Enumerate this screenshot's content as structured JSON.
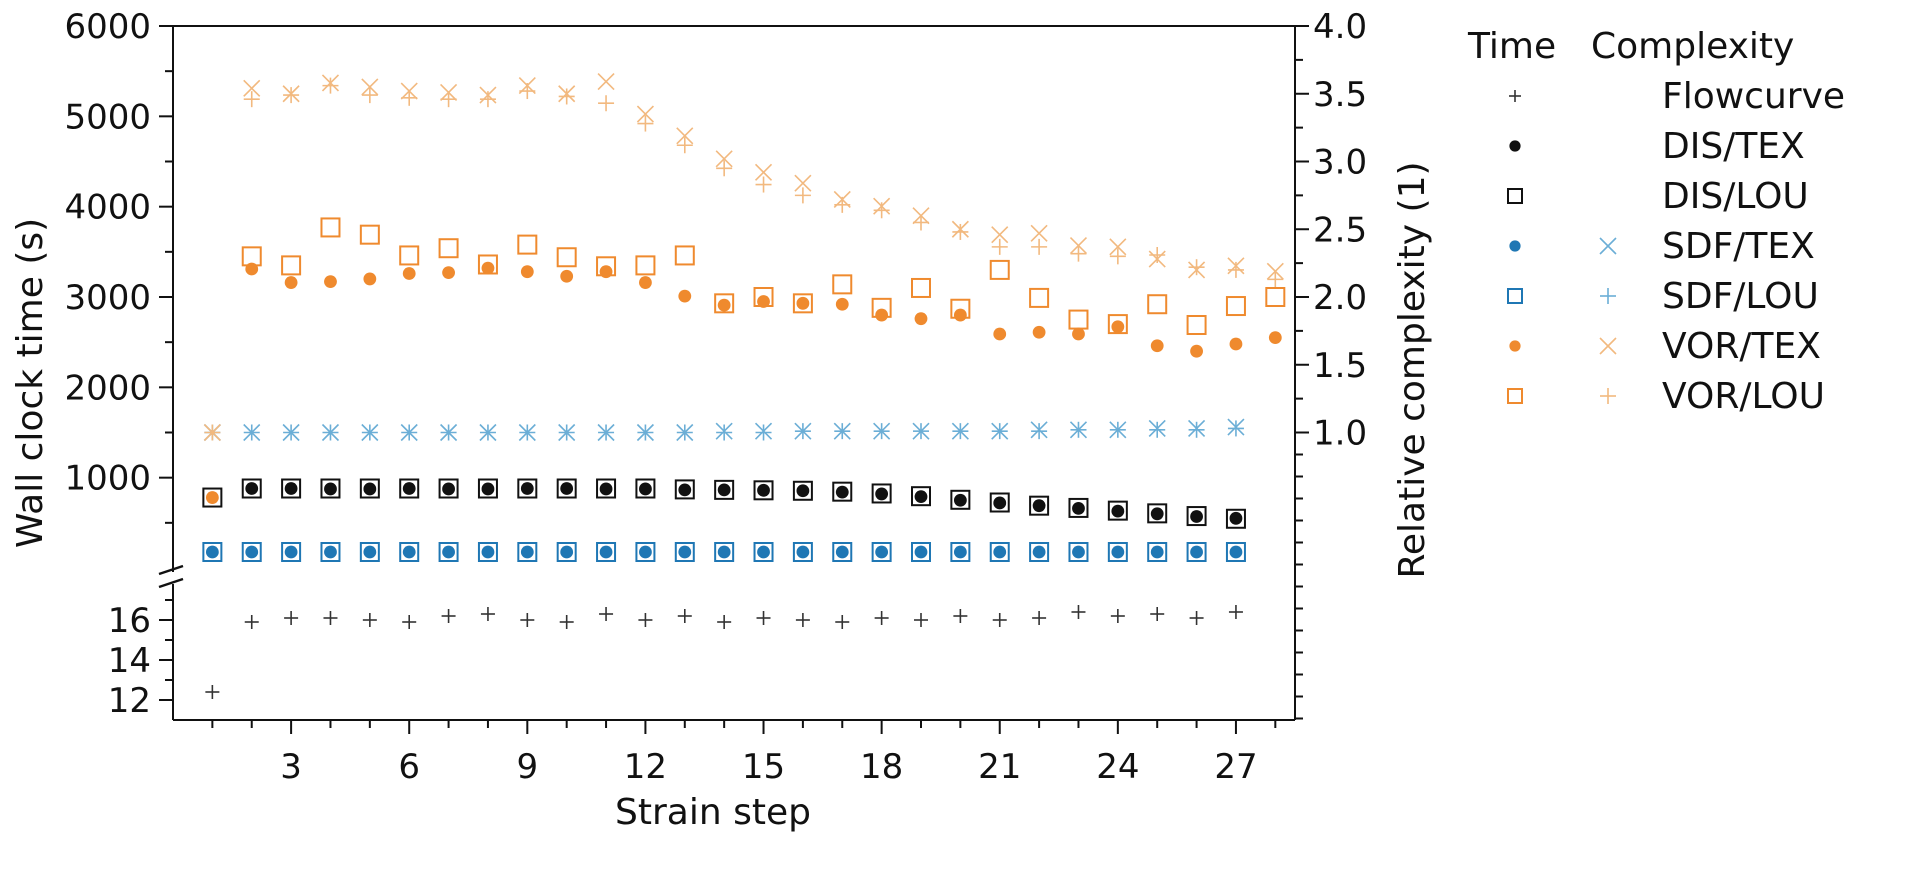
{
  "chart_data": {
    "type": "scatter",
    "xlabel": "Strain step",
    "ylabel_left": "Wall clock time (s)",
    "ylabel_right": "Relative complexity (1)",
    "x_ticks": [
      3,
      6,
      9,
      12,
      15,
      18,
      21,
      24,
      27
    ],
    "xlim": [
      0,
      28.5
    ],
    "y_upper_ticks": [
      1000,
      2000,
      3000,
      4000,
      5000,
      6000
    ],
    "y_upper_range": [
      0,
      6000
    ],
    "y_lower_ticks": [
      12,
      14,
      16
    ],
    "y_lower_range": [
      11,
      17.5
    ],
    "y_right_ticks": [
      "1.0",
      "1.5",
      "2.0",
      "2.5",
      "3.0",
      "3.5",
      "4.0"
    ],
    "y_right_range": [
      0,
      4
    ],
    "axis_break": true,
    "legend": {
      "placement": "right",
      "headers": [
        "Time",
        "Complexity"
      ],
      "entries": [
        "Flowcurve",
        "DIS/TEX",
        "DIS/LOU",
        "SDF/TEX",
        "SDF/LOU",
        "VOR/TEX",
        "VOR/LOU"
      ]
    },
    "colors": {
      "black": "#111111",
      "blue": "#1f77b4",
      "orange": "#ef8a2e",
      "orange_light": "#f2b97f",
      "blue_light": "#6baed6"
    },
    "time_series": [
      {
        "name": "Flowcurve",
        "axis": "lower",
        "marker": "plus",
        "color": "#333333",
        "x": [
          1,
          2,
          3,
          4,
          5,
          6,
          7,
          8,
          9,
          10,
          11,
          12,
          13,
          14,
          15,
          16,
          17,
          18,
          19,
          20,
          21,
          22,
          23,
          24,
          25,
          26,
          27
        ],
        "y": [
          12.4,
          15.9,
          16.1,
          16.1,
          16.0,
          15.9,
          16.2,
          16.3,
          16.0,
          15.9,
          16.3,
          16.0,
          16.2,
          15.9,
          16.1,
          16.0,
          15.9,
          16.1,
          16.0,
          16.2,
          16.0,
          16.1,
          16.4,
          16.2,
          16.3,
          16.1,
          16.4
        ]
      },
      {
        "name": "DIS/TEX",
        "axis": "upper",
        "marker": "filled-circle",
        "color": "#111111",
        "x": [
          2,
          3,
          4,
          5,
          6,
          7,
          8,
          9,
          10,
          11,
          12,
          13,
          14,
          15,
          16,
          17,
          18,
          19,
          20,
          21,
          22,
          23,
          24,
          25,
          26,
          27
        ],
        "y": [
          880,
          880,
          875,
          875,
          880,
          875,
          875,
          880,
          880,
          875,
          875,
          865,
          865,
          860,
          855,
          840,
          820,
          790,
          750,
          720,
          690,
          660,
          630,
          600,
          570,
          550
        ]
      },
      {
        "name": "DIS/LOU",
        "axis": "upper",
        "marker": "open-square",
        "color": "#111111",
        "x": [
          1,
          2,
          3,
          4,
          5,
          6,
          7,
          8,
          9,
          10,
          11,
          12,
          13,
          14,
          15,
          16,
          17,
          18,
          19,
          20,
          21,
          22,
          23,
          24,
          25,
          26,
          27
        ],
        "y": [
          780,
          880,
          880,
          880,
          880,
          880,
          880,
          880,
          880,
          880,
          880,
          880,
          870,
          865,
          860,
          855,
          845,
          825,
          795,
          755,
          725,
          690,
          665,
          635,
          605,
          575,
          545
        ]
      },
      {
        "name": "SDF/TEX",
        "axis": "upper",
        "marker": "filled-circle",
        "color": "#1f77b4",
        "x": [
          1,
          2,
          3,
          4,
          5,
          6,
          7,
          8,
          9,
          10,
          11,
          12,
          13,
          14,
          15,
          16,
          17,
          18,
          19,
          20,
          21,
          22,
          23,
          24,
          25,
          26,
          27
        ],
        "y": [
          30,
          30,
          30,
          25,
          30,
          30,
          30,
          30,
          30,
          30,
          25,
          30,
          30,
          30,
          30,
          30,
          30,
          35,
          30,
          35,
          30,
          30,
          30,
          35,
          35,
          30,
          30
        ]
      },
      {
        "name": "SDF/LOU",
        "axis": "upper",
        "marker": "open-square",
        "color": "#1f77b4",
        "x": [
          1,
          2,
          3,
          4,
          5,
          6,
          7,
          8,
          9,
          10,
          11,
          12,
          13,
          14,
          15,
          16,
          17,
          18,
          19,
          20,
          21,
          22,
          23,
          24,
          25,
          26,
          27
        ],
        "y": [
          30,
          30,
          30,
          30,
          30,
          30,
          25,
          30,
          30,
          30,
          30,
          30,
          35,
          30,
          30,
          30,
          30,
          35,
          30,
          30,
          40,
          30,
          35,
          30,
          35,
          30,
          40
        ]
      },
      {
        "name": "VOR/TEX",
        "axis": "upper",
        "marker": "filled-circle",
        "color": "#ef8a2e",
        "x": [
          1,
          2,
          3,
          4,
          5,
          6,
          7,
          8,
          9,
          10,
          11,
          12,
          13,
          14,
          15,
          16,
          17,
          18,
          19,
          20,
          21,
          22,
          23,
          24,
          25,
          26,
          27,
          28
        ],
        "y": [
          780,
          3310,
          3160,
          3170,
          3200,
          3260,
          3270,
          3320,
          3280,
          3230,
          3280,
          3160,
          3010,
          2910,
          2950,
          2930,
          2920,
          2800,
          2760,
          2800,
          2590,
          2610,
          2590,
          2670,
          2460,
          2400,
          2480,
          2550
        ]
      },
      {
        "name": "VOR/LOU",
        "axis": "upper",
        "marker": "open-square",
        "color": "#ef8a2e",
        "x": [
          2,
          3,
          4,
          5,
          6,
          7,
          8,
          9,
          10,
          11,
          12,
          13,
          14,
          15,
          16,
          17,
          18,
          19,
          20,
          21,
          22,
          23,
          24,
          25,
          26,
          27,
          28
        ],
        "y": [
          3450,
          3350,
          3770,
          3690,
          3460,
          3540,
          3360,
          3580,
          3440,
          3340,
          3350,
          3460,
          2930,
          3000,
          2930,
          3140,
          2880,
          3100,
          2870,
          3300,
          2990,
          2750,
          2700,
          2920,
          2690,
          2900,
          3000
        ]
      }
    ],
    "complexity_series": [
      {
        "name": "SDF/TEX",
        "marker": "x",
        "color": "#6baed6",
        "x": [
          1,
          2,
          3,
          4,
          5,
          6,
          7,
          8,
          9,
          10,
          11,
          12,
          13,
          14,
          15,
          16,
          17,
          18,
          19,
          20,
          21,
          22,
          23,
          24,
          25,
          26,
          27
        ],
        "y": [
          1.0,
          1.0,
          1.0,
          1.0,
          1.0,
          1.0,
          1.0,
          1.0,
          1.0,
          1.0,
          1.0,
          1.0,
          1.0,
          1.01,
          1.01,
          1.01,
          1.01,
          1.01,
          1.01,
          1.01,
          1.01,
          1.02,
          1.02,
          1.02,
          1.03,
          1.03,
          1.04
        ]
      },
      {
        "name": "SDF/LOU",
        "marker": "plus",
        "color": "#6baed6",
        "x": [
          1,
          2,
          3,
          4,
          5,
          6,
          7,
          8,
          9,
          10,
          11,
          12,
          13,
          14,
          15,
          16,
          17,
          18,
          19,
          20,
          21,
          22,
          23,
          24,
          25,
          26,
          27
        ],
        "y": [
          1.0,
          1.0,
          1.0,
          1.0,
          1.0,
          1.0,
          1.0,
          1.0,
          1.0,
          1.0,
          1.0,
          1.0,
          1.0,
          1.0,
          1.0,
          1.01,
          1.01,
          1.01,
          1.01,
          1.01,
          1.01,
          1.01,
          1.02,
          1.02,
          1.02,
          1.02,
          1.03
        ]
      },
      {
        "name": "VOR/TEX",
        "marker": "x",
        "color": "#f2b97f",
        "x": [
          1,
          2,
          3,
          4,
          5,
          6,
          7,
          8,
          9,
          10,
          11,
          12,
          13,
          14,
          15,
          16,
          17,
          18,
          19,
          20,
          21,
          22,
          23,
          24,
          25,
          26,
          27,
          28
        ],
        "y": [
          1.0,
          3.54,
          3.5,
          3.58,
          3.55,
          3.52,
          3.51,
          3.49,
          3.56,
          3.5,
          3.59,
          3.35,
          3.19,
          3.02,
          2.92,
          2.84,
          2.72,
          2.67,
          2.6,
          2.5,
          2.46,
          2.47,
          2.38,
          2.37,
          2.28,
          2.2,
          2.23,
          2.19
        ]
      },
      {
        "name": "VOR/LOU",
        "marker": "plus",
        "color": "#f2b97f",
        "x": [
          1,
          2,
          3,
          4,
          5,
          6,
          7,
          8,
          9,
          10,
          11,
          12,
          13,
          14,
          15,
          16,
          17,
          18,
          19,
          20,
          21,
          22,
          23,
          24,
          25,
          26,
          27,
          28
        ],
        "y": [
          1.0,
          3.46,
          3.49,
          3.56,
          3.49,
          3.47,
          3.46,
          3.46,
          3.52,
          3.48,
          3.43,
          3.28,
          3.12,
          2.95,
          2.83,
          2.75,
          2.68,
          2.64,
          2.55,
          2.48,
          2.37,
          2.37,
          2.32,
          2.3,
          2.31,
          2.22,
          2.2,
          2.13
        ]
      }
    ]
  }
}
